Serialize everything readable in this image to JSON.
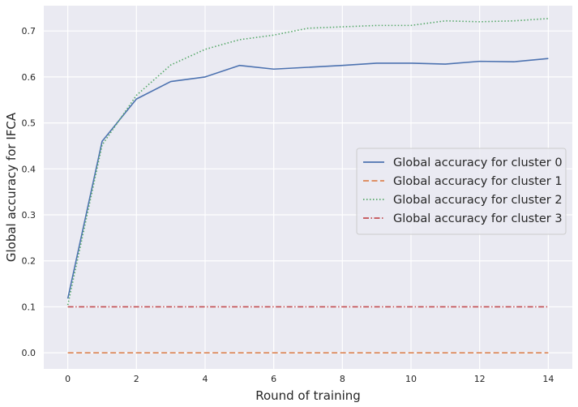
{
  "chart_data": {
    "type": "line",
    "xlabel": "Round of training",
    "ylabel": "Global accuracy for IFCA",
    "xlim": [
      -0.7,
      14.7
    ],
    "ylim": [
      -0.035,
      0.755
    ],
    "xticks": [
      0,
      2,
      4,
      6,
      8,
      10,
      12,
      14
    ],
    "yticks": [
      0.0,
      0.1,
      0.2,
      0.3,
      0.4,
      0.5,
      0.6,
      0.7
    ],
    "grid": true,
    "legend_position": "center-right",
    "x": [
      0,
      1,
      2,
      3,
      4,
      5,
      6,
      7,
      8,
      9,
      10,
      11,
      12,
      13,
      14
    ],
    "series": [
      {
        "name": "Global accuracy for cluster 0",
        "color": "#4c72b0",
        "style": "solid",
        "values": [
          0.118,
          0.46,
          0.552,
          0.59,
          0.6,
          0.625,
          0.617,
          0.621,
          0.625,
          0.63,
          0.63,
          0.628,
          0.634,
          0.633,
          0.64
        ]
      },
      {
        "name": "Global accuracy for cluster 1",
        "color": "#dd8452",
        "style": "dashed",
        "values": [
          0.0,
          0.0,
          0.0,
          0.0,
          0.0,
          0.0,
          0.0,
          0.0,
          0.0,
          0.0,
          0.0,
          0.0,
          0.0,
          0.0,
          0.0
        ]
      },
      {
        "name": "Global accuracy for cluster 2",
        "color": "#55a868",
        "style": "dotted",
        "values": [
          0.104,
          0.452,
          0.56,
          0.626,
          0.66,
          0.681,
          0.691,
          0.706,
          0.709,
          0.712,
          0.712,
          0.722,
          0.72,
          0.722,
          0.727
        ]
      },
      {
        "name": "Global accuracy for cluster 3",
        "color": "#c44e52",
        "style": "dashdot",
        "values": [
          0.1,
          0.1,
          0.1,
          0.1,
          0.1,
          0.1,
          0.1,
          0.1,
          0.1,
          0.1,
          0.1,
          0.1,
          0.1,
          0.1,
          0.1
        ]
      }
    ]
  }
}
